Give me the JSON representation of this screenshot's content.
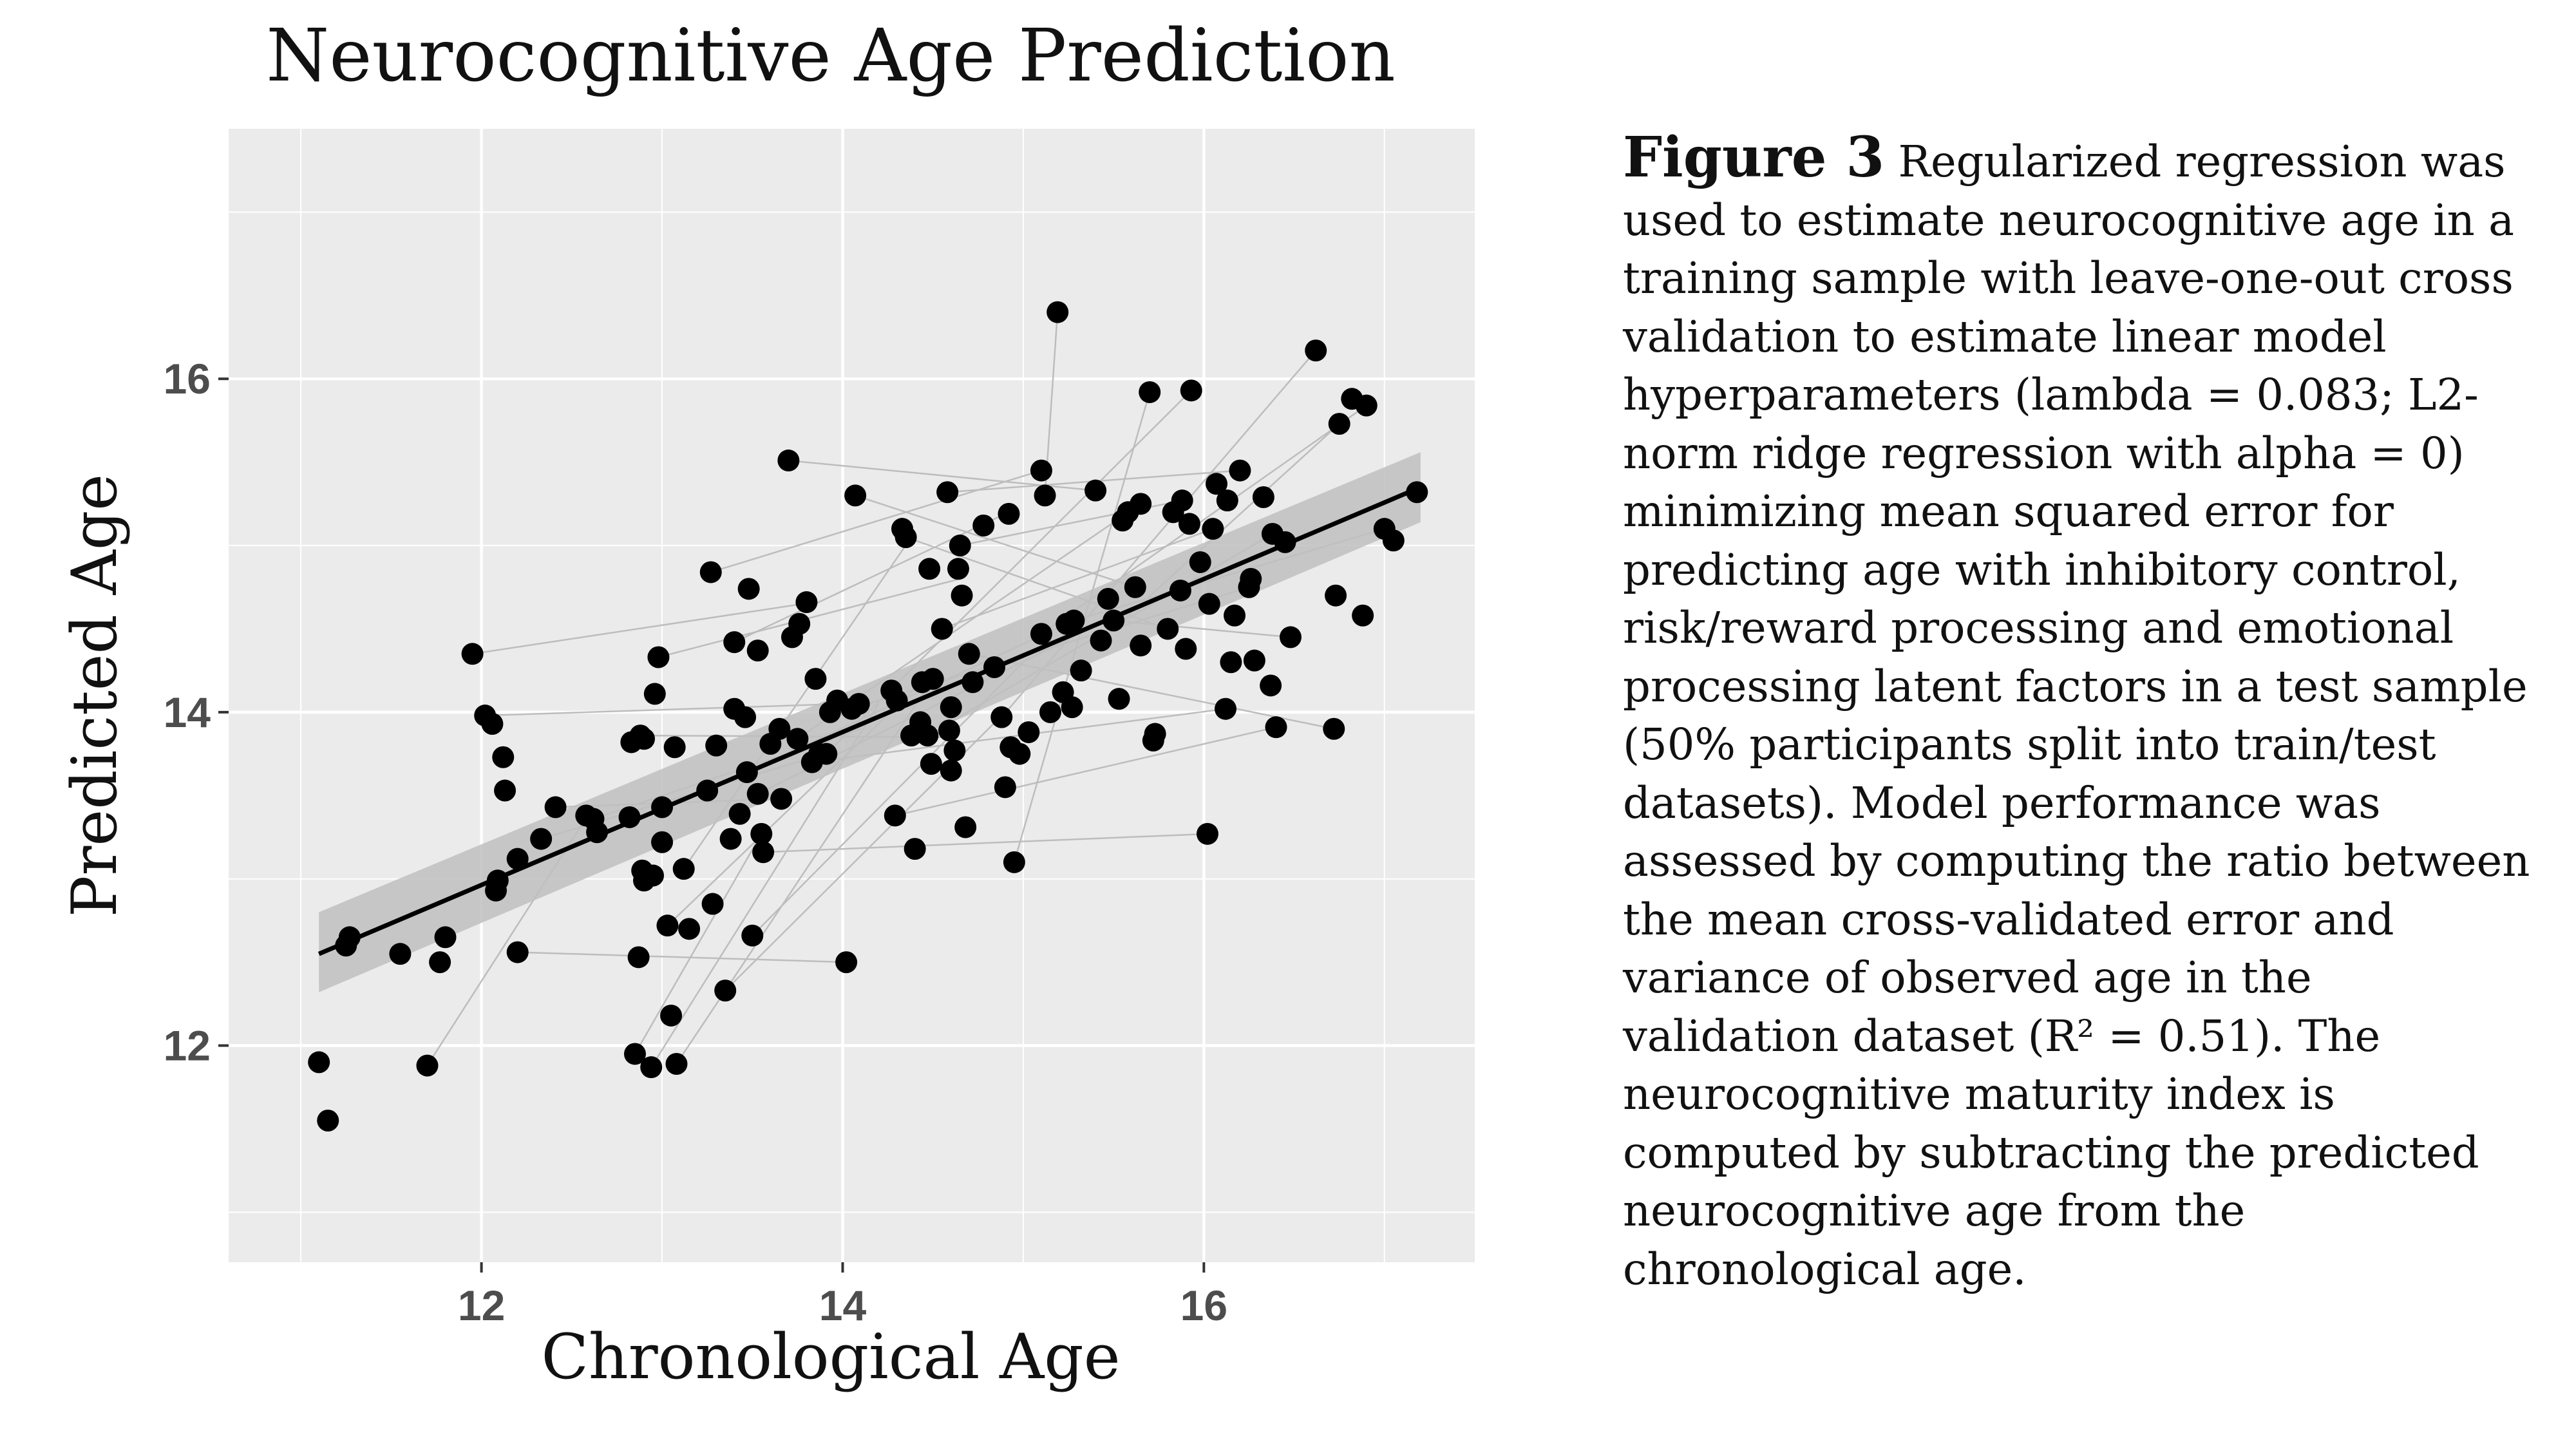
{
  "chart_data": {
    "type": "scatter",
    "title": "Neurocognitive Age Prediction",
    "xlabel": "Chronological Age",
    "ylabel": "Predicted Age",
    "xlim": [
      10.6,
      17.5
    ],
    "ylim": [
      10.7,
      17.5
    ],
    "xticks": [
      12,
      14,
      16
    ],
    "yticks": [
      12,
      14,
      16
    ],
    "grid": true,
    "background": "#ebebeb",
    "grid_color": "#ffffff",
    "point_color": "#000000",
    "pair_line_color": "#bdbdbd",
    "fit_line_color": "#000000",
    "ci_color": "#bfbfbf",
    "fit_line": {
      "x0": 11.1,
      "y0": 12.55,
      "x1": 17.2,
      "y1": 15.35
    },
    "ci_band": {
      "x0": 11.1,
      "lower0": 12.32,
      "upper0": 12.8,
      "x1": 17.2,
      "lower1": 15.14,
      "upper1": 15.56
    },
    "points": [
      {
        "x": 11.1,
        "y": 11.9
      },
      {
        "x": 11.15,
        "y": 11.55
      },
      {
        "x": 11.25,
        "y": 12.6
      },
      {
        "x": 11.27,
        "y": 12.65
      },
      {
        "x": 11.55,
        "y": 12.55
      },
      {
        "x": 11.7,
        "y": 11.88
      },
      {
        "x": 11.77,
        "y": 12.5
      },
      {
        "x": 11.8,
        "y": 12.65
      },
      {
        "x": 11.95,
        "y": 14.35
      },
      {
        "x": 12.02,
        "y": 13.98
      },
      {
        "x": 12.06,
        "y": 13.93
      },
      {
        "x": 12.08,
        "y": 12.93
      },
      {
        "x": 12.09,
        "y": 12.99
      },
      {
        "x": 12.12,
        "y": 13.73
      },
      {
        "x": 12.13,
        "y": 13.53
      },
      {
        "x": 12.2,
        "y": 12.56
      },
      {
        "x": 12.2,
        "y": 13.12
      },
      {
        "x": 12.33,
        "y": 13.24
      },
      {
        "x": 12.41,
        "y": 13.43
      },
      {
        "x": 12.58,
        "y": 13.38
      },
      {
        "x": 12.62,
        "y": 13.36
      },
      {
        "x": 12.64,
        "y": 13.28
      },
      {
        "x": 12.82,
        "y": 13.37
      },
      {
        "x": 12.83,
        "y": 13.82
      },
      {
        "x": 12.85,
        "y": 11.95
      },
      {
        "x": 12.87,
        "y": 12.53
      },
      {
        "x": 12.88,
        "y": 13.86
      },
      {
        "x": 12.89,
        "y": 13.05
      },
      {
        "x": 12.9,
        "y": 12.99
      },
      {
        "x": 12.9,
        "y": 13.84
      },
      {
        "x": 12.94,
        "y": 11.87
      },
      {
        "x": 12.95,
        "y": 13.02
      },
      {
        "x": 12.96,
        "y": 14.11
      },
      {
        "x": 12.98,
        "y": 14.33
      },
      {
        "x": 13.0,
        "y": 13.22
      },
      {
        "x": 13.0,
        "y": 13.43
      },
      {
        "x": 13.03,
        "y": 12.72
      },
      {
        "x": 13.05,
        "y": 12.18
      },
      {
        "x": 13.08,
        "y": 11.89
      },
      {
        "x": 13.07,
        "y": 13.79
      },
      {
        "x": 13.12,
        "y": 13.06
      },
      {
        "x": 13.15,
        "y": 12.7
      },
      {
        "x": 13.25,
        "y": 13.53
      },
      {
        "x": 13.27,
        "y": 14.84
      },
      {
        "x": 13.28,
        "y": 12.85
      },
      {
        "x": 13.3,
        "y": 13.8
      },
      {
        "x": 13.35,
        "y": 12.33
      },
      {
        "x": 13.38,
        "y": 13.24
      },
      {
        "x": 13.4,
        "y": 14.02
      },
      {
        "x": 13.4,
        "y": 14.42
      },
      {
        "x": 13.43,
        "y": 13.39
      },
      {
        "x": 13.46,
        "y": 13.97
      },
      {
        "x": 13.47,
        "y": 13.64
      },
      {
        "x": 13.48,
        "y": 14.74
      },
      {
        "x": 13.5,
        "y": 12.66
      },
      {
        "x": 13.53,
        "y": 13.51
      },
      {
        "x": 13.53,
        "y": 14.37
      },
      {
        "x": 13.55,
        "y": 13.27
      },
      {
        "x": 13.56,
        "y": 13.16
      },
      {
        "x": 13.6,
        "y": 13.81
      },
      {
        "x": 13.65,
        "y": 13.9
      },
      {
        "x": 13.66,
        "y": 13.48
      },
      {
        "x": 13.7,
        "y": 15.51
      },
      {
        "x": 13.72,
        "y": 14.45
      },
      {
        "x": 13.75,
        "y": 13.84
      },
      {
        "x": 13.76,
        "y": 14.53
      },
      {
        "x": 13.8,
        "y": 14.66
      },
      {
        "x": 13.83,
        "y": 13.7
      },
      {
        "x": 13.85,
        "y": 14.2
      },
      {
        "x": 13.87,
        "y": 13.75
      },
      {
        "x": 13.91,
        "y": 13.75
      },
      {
        "x": 13.93,
        "y": 14.0
      },
      {
        "x": 13.97,
        "y": 14.07
      },
      {
        "x": 14.02,
        "y": 12.5
      },
      {
        "x": 14.05,
        "y": 14.02
      },
      {
        "x": 14.07,
        "y": 15.3
      },
      {
        "x": 14.09,
        "y": 14.05
      },
      {
        "x": 14.27,
        "y": 14.13
      },
      {
        "x": 14.29,
        "y": 13.38
      },
      {
        "x": 14.3,
        "y": 14.07
      },
      {
        "x": 14.33,
        "y": 15.1
      },
      {
        "x": 14.35,
        "y": 15.05
      },
      {
        "x": 14.38,
        "y": 13.86
      },
      {
        "x": 14.4,
        "y": 13.18
      },
      {
        "x": 14.43,
        "y": 13.94
      },
      {
        "x": 14.44,
        "y": 14.18
      },
      {
        "x": 14.47,
        "y": 13.86
      },
      {
        "x": 14.48,
        "y": 14.86
      },
      {
        "x": 14.49,
        "y": 13.69
      },
      {
        "x": 14.5,
        "y": 14.2
      },
      {
        "x": 14.55,
        "y": 14.5
      },
      {
        "x": 14.58,
        "y": 15.32
      },
      {
        "x": 14.59,
        "y": 13.89
      },
      {
        "x": 14.6,
        "y": 13.65
      },
      {
        "x": 14.6,
        "y": 14.03
      },
      {
        "x": 14.62,
        "y": 13.77
      },
      {
        "x": 14.64,
        "y": 14.86
      },
      {
        "x": 14.65,
        "y": 15.0
      },
      {
        "x": 14.66,
        "y": 14.7
      },
      {
        "x": 14.68,
        "y": 13.31
      },
      {
        "x": 14.7,
        "y": 14.35
      },
      {
        "x": 14.72,
        "y": 14.18
      },
      {
        "x": 14.78,
        "y": 15.12
      },
      {
        "x": 14.84,
        "y": 14.27
      },
      {
        "x": 14.88,
        "y": 13.97
      },
      {
        "x": 14.9,
        "y": 13.55
      },
      {
        "x": 14.92,
        "y": 15.19
      },
      {
        "x": 14.93,
        "y": 13.79
      },
      {
        "x": 14.95,
        "y": 13.1
      },
      {
        "x": 14.98,
        "y": 13.75
      },
      {
        "x": 15.03,
        "y": 13.88
      },
      {
        "x": 15.1,
        "y": 14.47
      },
      {
        "x": 15.1,
        "y": 15.45
      },
      {
        "x": 15.12,
        "y": 15.3
      },
      {
        "x": 15.15,
        "y": 14.0
      },
      {
        "x": 15.19,
        "y": 16.4
      },
      {
        "x": 15.22,
        "y": 14.12
      },
      {
        "x": 15.24,
        "y": 14.53
      },
      {
        "x": 15.27,
        "y": 14.03
      },
      {
        "x": 15.28,
        "y": 14.55
      },
      {
        "x": 15.32,
        "y": 14.25
      },
      {
        "x": 15.4,
        "y": 15.33
      },
      {
        "x": 15.43,
        "y": 14.43
      },
      {
        "x": 15.47,
        "y": 14.68
      },
      {
        "x": 15.5,
        "y": 14.55
      },
      {
        "x": 15.53,
        "y": 14.08
      },
      {
        "x": 15.55,
        "y": 15.15
      },
      {
        "x": 15.58,
        "y": 15.2
      },
      {
        "x": 15.62,
        "y": 14.75
      },
      {
        "x": 15.65,
        "y": 14.4
      },
      {
        "x": 15.65,
        "y": 15.25
      },
      {
        "x": 15.7,
        "y": 15.92
      },
      {
        "x": 15.72,
        "y": 13.83
      },
      {
        "x": 15.73,
        "y": 13.87
      },
      {
        "x": 15.8,
        "y": 14.5
      },
      {
        "x": 15.83,
        "y": 15.2
      },
      {
        "x": 15.87,
        "y": 14.73
      },
      {
        "x": 15.88,
        "y": 15.27
      },
      {
        "x": 15.9,
        "y": 14.38
      },
      {
        "x": 15.92,
        "y": 15.13
      },
      {
        "x": 15.93,
        "y": 15.93
      },
      {
        "x": 15.98,
        "y": 14.9
      },
      {
        "x": 16.02,
        "y": 13.27
      },
      {
        "x": 16.03,
        "y": 14.65
      },
      {
        "x": 16.05,
        "y": 15.1
      },
      {
        "x": 16.07,
        "y": 15.37
      },
      {
        "x": 16.12,
        "y": 14.02
      },
      {
        "x": 16.13,
        "y": 15.27
      },
      {
        "x": 16.15,
        "y": 14.3
      },
      {
        "x": 16.17,
        "y": 14.58
      },
      {
        "x": 16.2,
        "y": 15.45
      },
      {
        "x": 16.25,
        "y": 14.75
      },
      {
        "x": 16.26,
        "y": 14.8
      },
      {
        "x": 16.28,
        "y": 14.31
      },
      {
        "x": 16.33,
        "y": 15.29
      },
      {
        "x": 16.37,
        "y": 14.16
      },
      {
        "x": 16.38,
        "y": 15.07
      },
      {
        "x": 16.4,
        "y": 13.91
      },
      {
        "x": 16.45,
        "y": 15.02
      },
      {
        "x": 16.48,
        "y": 14.45
      },
      {
        "x": 16.62,
        "y": 16.17
      },
      {
        "x": 16.72,
        "y": 13.9
      },
      {
        "x": 16.73,
        "y": 14.7
      },
      {
        "x": 16.75,
        "y": 15.73
      },
      {
        "x": 16.82,
        "y": 15.88
      },
      {
        "x": 16.88,
        "y": 14.58
      },
      {
        "x": 16.9,
        "y": 15.84
      },
      {
        "x": 17.0,
        "y": 15.1
      },
      {
        "x": 17.05,
        "y": 15.03
      },
      {
        "x": 17.18,
        "y": 15.32
      }
    ],
    "pair_lines": [
      [
        11.7,
        11.88,
        12.6,
        13.4
      ],
      [
        11.95,
        14.35,
        13.78,
        14.65
      ],
      [
        12.02,
        13.98,
        14.0,
        14.05
      ],
      [
        12.2,
        12.56,
        14.02,
        12.5
      ],
      [
        12.33,
        13.24,
        13.9,
        13.75
      ],
      [
        12.62,
        13.36,
        14.1,
        13.9
      ],
      [
        12.88,
        13.86,
        14.62,
        13.85
      ],
      [
        12.94,
        11.87,
        14.2,
        14.05
      ],
      [
        12.98,
        14.33,
        14.65,
        14.8
      ],
      [
        13.08,
        11.89,
        14.5,
        14.2
      ],
      [
        13.27,
        14.84,
        15.1,
        15.45
      ],
      [
        13.35,
        12.33,
        14.9,
        14.0
      ],
      [
        13.5,
        12.66,
        15.0,
        14.3
      ],
      [
        13.53,
        13.51,
        15.55,
        14.6
      ],
      [
        13.56,
        13.16,
        16.02,
        13.27
      ],
      [
        13.7,
        15.51,
        15.4,
        15.33
      ],
      [
        13.75,
        13.84,
        15.65,
        15.25
      ],
      [
        13.83,
        13.7,
        16.12,
        14.02
      ],
      [
        13.91,
        13.75,
        15.93,
        15.93
      ],
      [
        14.05,
        14.02,
        16.25,
        14.75
      ],
      [
        14.07,
        15.3,
        15.62,
        14.75
      ],
      [
        14.29,
        13.38,
        16.4,
        13.91
      ],
      [
        14.35,
        15.05,
        15.8,
        14.5
      ],
      [
        14.47,
        13.86,
        16.38,
        15.07
      ],
      [
        14.58,
        15.32,
        16.2,
        15.45
      ],
      [
        14.65,
        15.0,
        15.88,
        15.27
      ],
      [
        14.7,
        14.35,
        16.72,
        13.9
      ],
      [
        14.88,
        13.97,
        16.62,
        16.17
      ],
      [
        14.95,
        13.1,
        15.7,
        15.92
      ],
      [
        15.1,
        14.47,
        16.9,
        15.84
      ],
      [
        15.19,
        16.4,
        15.12,
        15.3
      ],
      [
        15.28,
        14.55,
        17.0,
        15.1
      ],
      [
        15.43,
        14.43,
        16.75,
        15.73
      ],
      [
        15.5,
        14.55,
        16.48,
        14.45
      ],
      [
        13.12,
        13.06,
        14.38,
        15.05
      ],
      [
        12.85,
        11.95,
        13.55,
        13.27
      ],
      [
        13.4,
        14.42,
        14.9,
        15.19
      ],
      [
        13.47,
        13.64,
        15.24,
        14.53
      ],
      [
        12.41,
        13.43,
        13.66,
        13.48
      ],
      [
        14.55,
        14.5,
        16.05,
        15.1
      ],
      [
        13.03,
        12.72,
        14.44,
        14.18
      ]
    ]
  },
  "caption": {
    "label": "Figure 3",
    "text": "Regularized regression was used to estimate neurocognitive age in a training sample with leave-one-out cross validation to estimate linear model hyperparameters (lambda = 0.083; L2-norm ridge regression with alpha = 0) minimizing mean squared error for predicting age with inhibitory control, risk/reward processing and emotional processing latent factors in a test sample (50% participants split into train/test datasets). Model performance was assessed by computing the ratio between the mean cross-validated error and variance of observed age in the validation dataset (R² = 0.51). The neurocognitive maturity index is computed by subtracting the predicted neurocognitive age from the chronological age."
  }
}
